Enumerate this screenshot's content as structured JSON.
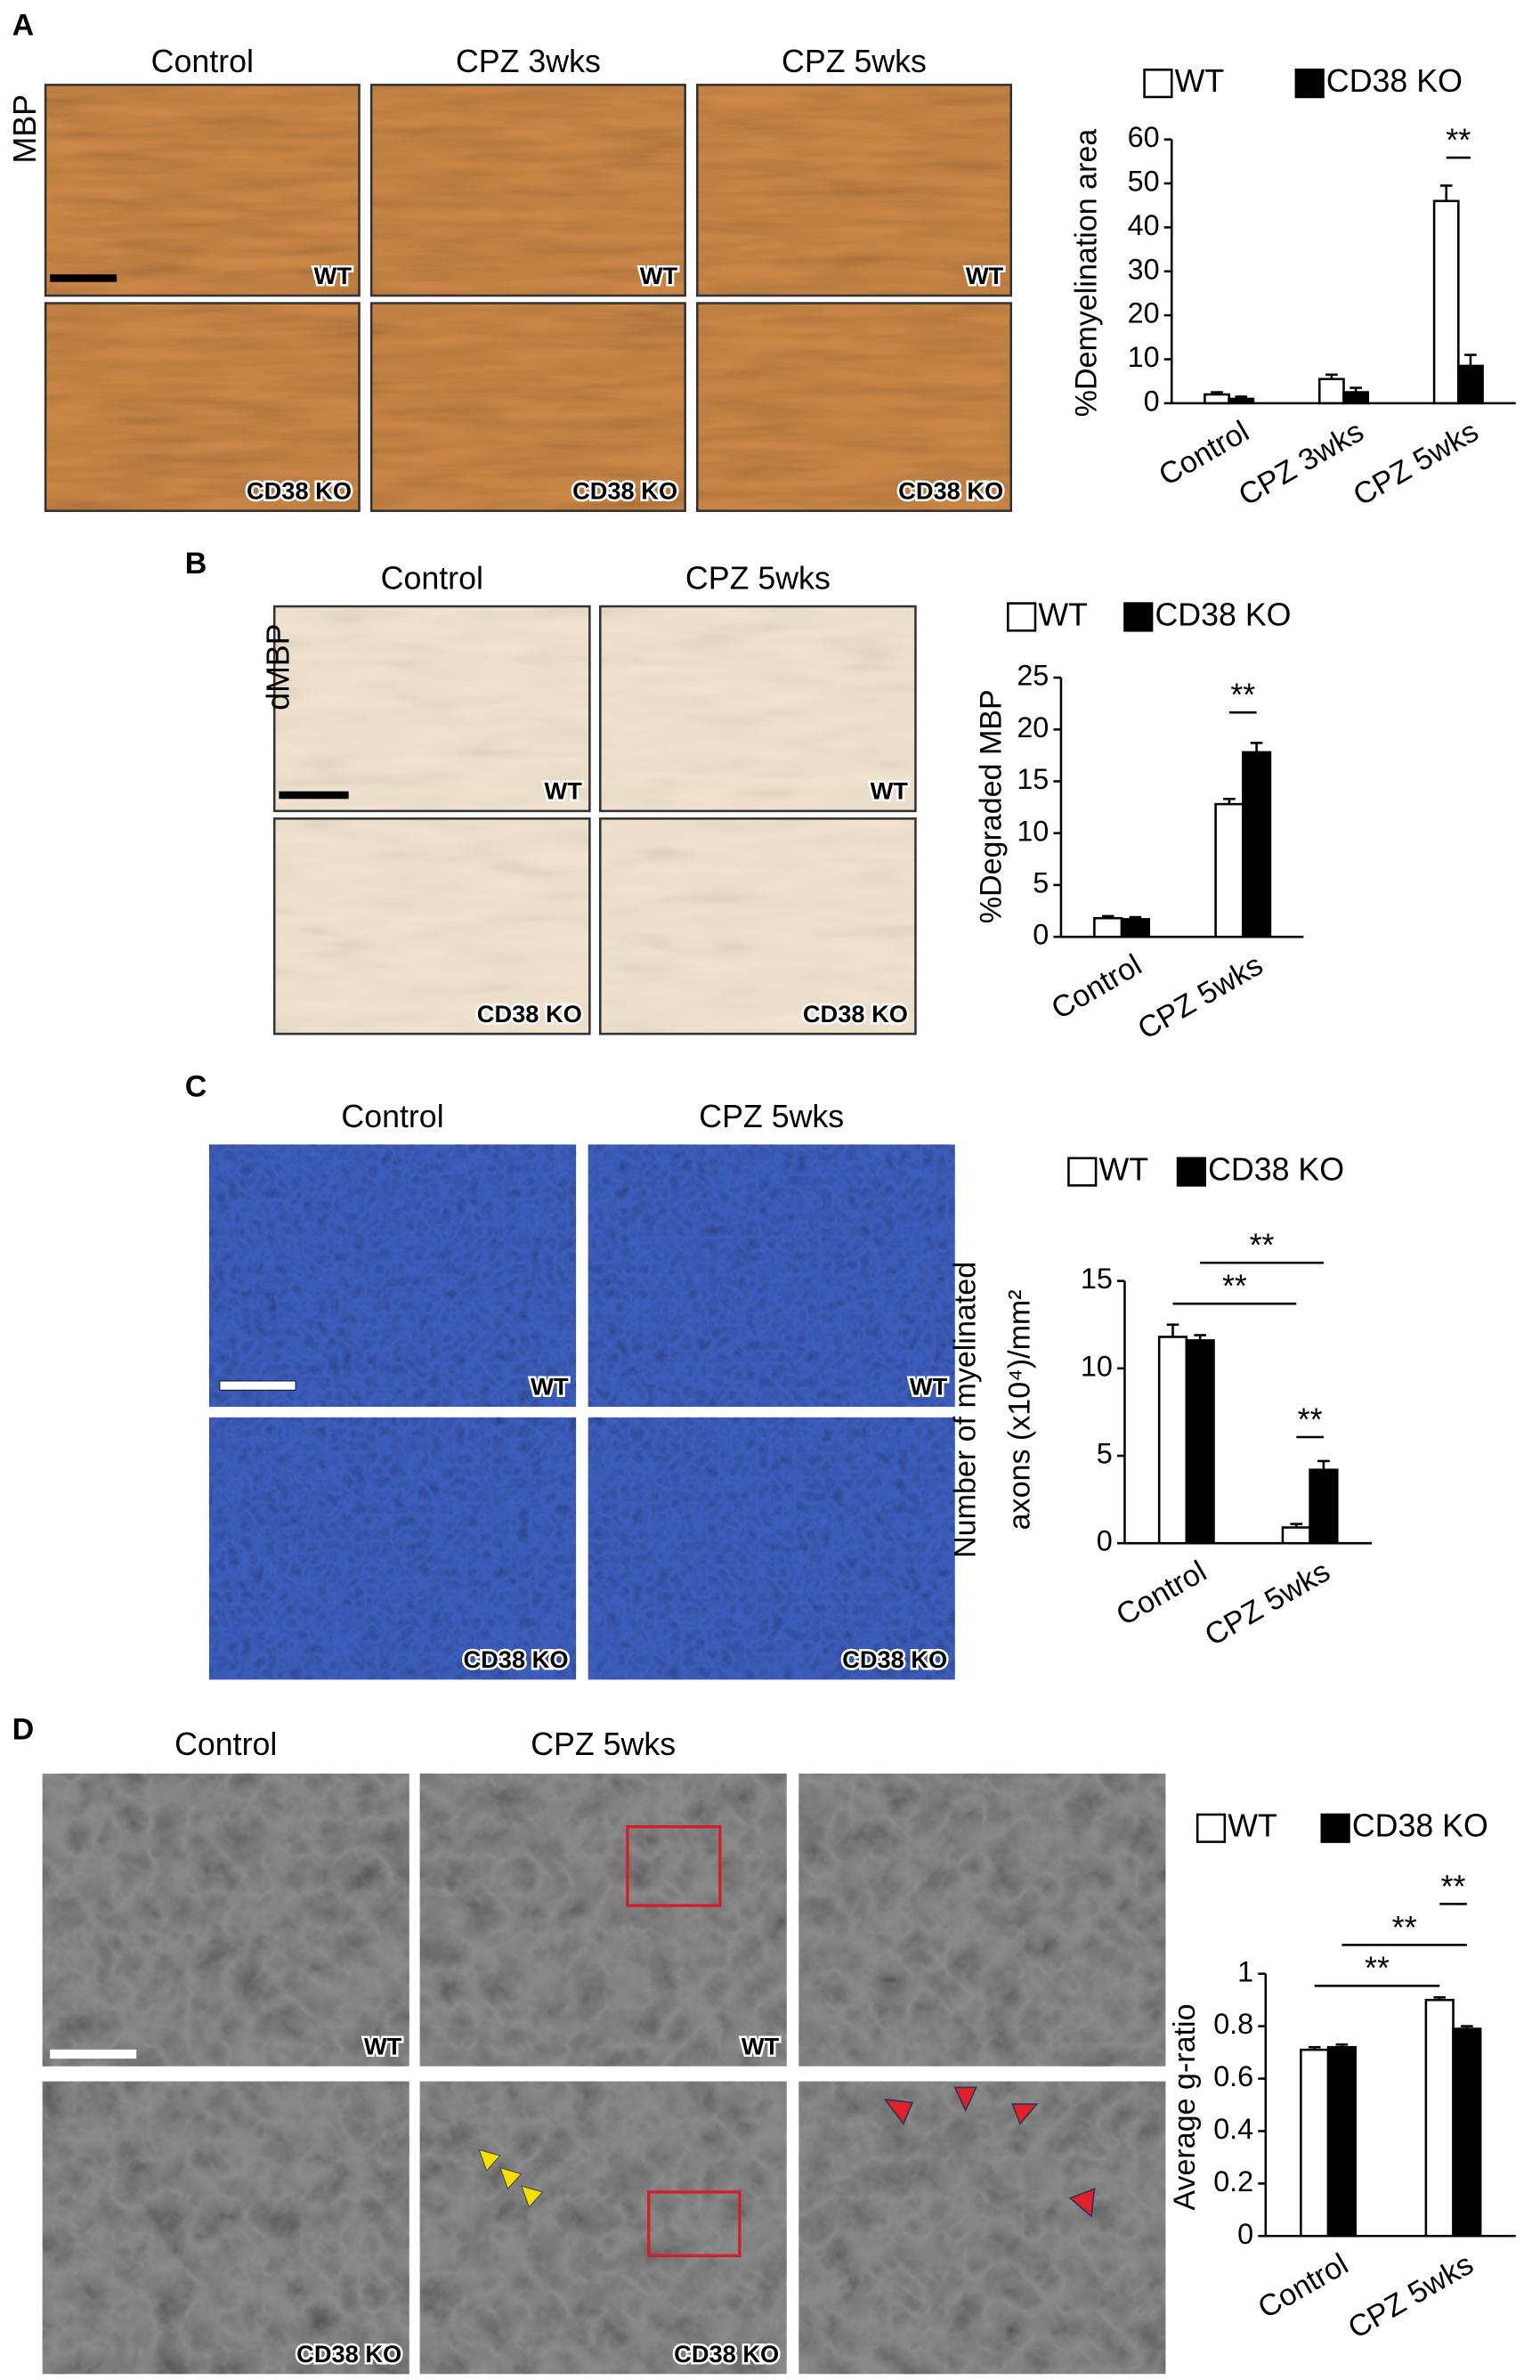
{
  "panels": [
    {
      "letter": "A",
      "stain": "MBP",
      "columns": [
        "Control",
        "CPZ 3wks",
        "CPZ 5wks"
      ],
      "row_labels": [
        "WT",
        "CD38 KO"
      ]
    },
    {
      "letter": "B",
      "stain": "dMBP",
      "columns": [
        "Control",
        "CPZ 5wks"
      ],
      "row_labels": [
        "WT",
        "CD38 KO"
      ]
    },
    {
      "letter": "C",
      "columns": [
        "Control",
        "CPZ 5wks"
      ],
      "row_labels": [
        "WT",
        "CD38 KO"
      ]
    },
    {
      "letter": "D",
      "columns": [
        "Control",
        "CPZ 5wks"
      ],
      "row_labels": [
        "WT",
        "CD38 KO"
      ]
    }
  ],
  "chart_data": [
    {
      "type": "bar",
      "ylabel": "%Demyelination area",
      "categories": [
        "Control",
        "CPZ 3wks",
        "CPZ 5wks"
      ],
      "series": [
        {
          "name": "WT",
          "color": "#ffffff",
          "values": [
            2,
            5.5,
            46
          ],
          "errors": [
            0.5,
            1,
            3.5
          ]
        },
        {
          "name": "CD38 KO",
          "color": "#000000",
          "values": [
            1,
            2.5,
            8.5
          ],
          "errors": [
            0.5,
            1,
            2.5
          ]
        }
      ],
      "ylim": [
        0,
        60
      ],
      "yticks": [
        0,
        10,
        20,
        30,
        40,
        50,
        60
      ],
      "annotations": [
        "**"
      ]
    },
    {
      "type": "bar",
      "ylabel": "%Degraded MBP",
      "categories": [
        "Control",
        "CPZ 5wks"
      ],
      "series": [
        {
          "name": "WT",
          "color": "#ffffff",
          "values": [
            1.8,
            12.8
          ],
          "errors": [
            0.2,
            0.5
          ]
        },
        {
          "name": "CD38 KO",
          "color": "#000000",
          "values": [
            1.7,
            17.8
          ],
          "errors": [
            0.2,
            0.9
          ]
        }
      ],
      "ylim": [
        0,
        25
      ],
      "yticks": [
        0,
        5,
        10,
        15,
        20,
        25
      ],
      "annotations": [
        "**"
      ]
    },
    {
      "type": "bar",
      "ylabel": [
        "Number of myelinated",
        "axons (x10⁴)/mm²"
      ],
      "categories": [
        "Control",
        "CPZ 5wks"
      ],
      "series": [
        {
          "name": "WT",
          "color": "#ffffff",
          "values": [
            11.8,
            0.9
          ],
          "errors": [
            0.7,
            0.2
          ]
        },
        {
          "name": "CD38 KO",
          "color": "#000000",
          "values": [
            11.6,
            4.2
          ],
          "errors": [
            0.3,
            0.5
          ]
        }
      ],
      "ylim": [
        0,
        15
      ],
      "yticks": [
        0,
        5,
        10,
        15
      ],
      "annotations": [
        "**",
        "**",
        "**"
      ]
    },
    {
      "type": "bar",
      "ylabel": "Average g-ratio",
      "categories": [
        "Control",
        "CPZ 5wks"
      ],
      "series": [
        {
          "name": "WT",
          "color": "#ffffff",
          "values": [
            0.71,
            0.9
          ],
          "errors": [
            0.01,
            0.01
          ]
        },
        {
          "name": "CD38 KO",
          "color": "#000000",
          "values": [
            0.72,
            0.79
          ],
          "errors": [
            0.01,
            0.01
          ]
        }
      ],
      "ylim": [
        0,
        1
      ],
      "yticks": [
        0,
        0.2,
        0.4,
        0.6,
        0.8,
        1
      ],
      "annotations": [
        "**",
        "**",
        "**"
      ]
    }
  ]
}
